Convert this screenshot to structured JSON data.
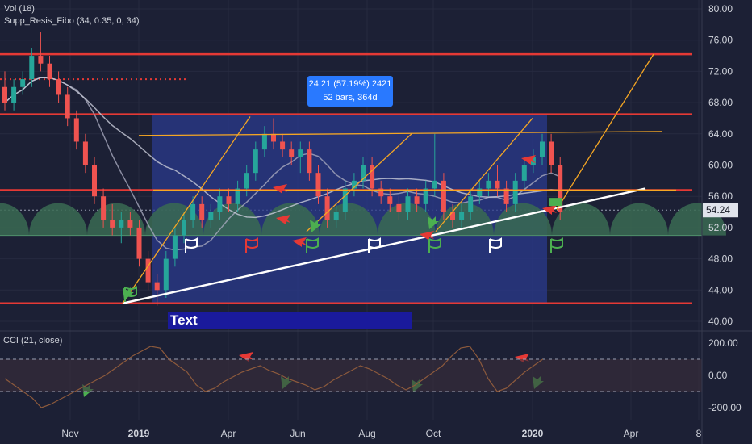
{
  "chart_data": [
    {
      "type": "candlestick",
      "title": "",
      "indicators_legend": [
        "Vol (18)",
        "Supp_Resis_Fibo (34, 0.35, 0, 34)"
      ],
      "x_ticks": [
        "Nov",
        "2019",
        "Apr",
        "Jun",
        "Aug",
        "Oct",
        "2020",
        "Apr",
        "8"
      ],
      "y_ticks": [
        "80.00",
        "76.00",
        "72.00",
        "68.00",
        "64.00",
        "60.00",
        "56.00",
        "52.00",
        "48.00",
        "44.00",
        "40.00"
      ],
      "ylim": [
        40,
        80
      ],
      "last_price": "54.24",
      "horizontal_levels": [
        74.2,
        66.5,
        56.8,
        42.3
      ],
      "measure_label_line1": "24.21 (57.19%) 2421",
      "measure_label_line2": "52 bars, 364d",
      "text_note": "Text",
      "colors": {
        "up": "#26a69a",
        "down": "#ef5350",
        "level": "#e53935",
        "trend": "#ffffff",
        "fib": "#f5a623",
        "zone": "#2a3a8c"
      },
      "candles": [
        {
          "o": 70,
          "h": 72,
          "l": 67,
          "c": 68
        },
        {
          "o": 68,
          "h": 71,
          "l": 67,
          "c": 70
        },
        {
          "o": 70,
          "h": 72,
          "l": 69,
          "c": 71
        },
        {
          "o": 71,
          "h": 75,
          "l": 70,
          "c": 74
        },
        {
          "o": 74,
          "h": 77,
          "l": 72,
          "c": 73
        },
        {
          "o": 73,
          "h": 74,
          "l": 70,
          "c": 71
        },
        {
          "o": 71,
          "h": 72,
          "l": 68,
          "c": 69
        },
        {
          "o": 69,
          "h": 70,
          "l": 65,
          "c": 66
        },
        {
          "o": 66,
          "h": 67,
          "l": 62,
          "c": 63
        },
        {
          "o": 63,
          "h": 64,
          "l": 59,
          "c": 60
        },
        {
          "o": 60,
          "h": 61,
          "l": 55,
          "c": 56
        },
        {
          "o": 56,
          "h": 57,
          "l": 52,
          "c": 53
        },
        {
          "o": 53,
          "h": 55,
          "l": 51,
          "c": 52
        },
        {
          "o": 52,
          "h": 54,
          "l": 50,
          "c": 53
        },
        {
          "o": 53,
          "h": 54,
          "l": 51,
          "c": 52
        },
        {
          "o": 52,
          "h": 53,
          "l": 47,
          "c": 48
        },
        {
          "o": 48,
          "h": 49,
          "l": 44,
          "c": 45
        },
        {
          "o": 45,
          "h": 46,
          "l": 42,
          "c": 44
        },
        {
          "o": 44,
          "h": 49,
          "l": 43,
          "c": 48
        },
        {
          "o": 48,
          "h": 52,
          "l": 47,
          "c": 51
        },
        {
          "o": 51,
          "h": 54,
          "l": 50,
          "c": 53
        },
        {
          "o": 53,
          "h": 56,
          "l": 52,
          "c": 55
        },
        {
          "o": 55,
          "h": 56,
          "l": 52,
          "c": 53
        },
        {
          "o": 53,
          "h": 55,
          "l": 52,
          "c": 54
        },
        {
          "o": 54,
          "h": 57,
          "l": 53,
          "c": 56
        },
        {
          "o": 56,
          "h": 57,
          "l": 54,
          "c": 55
        },
        {
          "o": 55,
          "h": 58,
          "l": 54,
          "c": 57
        },
        {
          "o": 57,
          "h": 60,
          "l": 56,
          "c": 59
        },
        {
          "o": 59,
          "h": 63,
          "l": 58,
          "c": 62
        },
        {
          "o": 62,
          "h": 65,
          "l": 61,
          "c": 64
        },
        {
          "o": 64,
          "h": 66,
          "l": 62,
          "c": 63
        },
        {
          "o": 63,
          "h": 64,
          "l": 61,
          "c": 62
        },
        {
          "o": 62,
          "h": 63,
          "l": 60,
          "c": 61
        },
        {
          "o": 61,
          "h": 63,
          "l": 59,
          "c": 62
        },
        {
          "o": 62,
          "h": 63,
          "l": 58,
          "c": 59
        },
        {
          "o": 59,
          "h": 60,
          "l": 55,
          "c": 56
        },
        {
          "o": 56,
          "h": 57,
          "l": 52,
          "c": 53
        },
        {
          "o": 53,
          "h": 55,
          "l": 52,
          "c": 54
        },
        {
          "o": 54,
          "h": 58,
          "l": 53,
          "c": 57
        },
        {
          "o": 57,
          "h": 59,
          "l": 56,
          "c": 58
        },
        {
          "o": 58,
          "h": 61,
          "l": 57,
          "c": 60
        },
        {
          "o": 60,
          "h": 61,
          "l": 56,
          "c": 57
        },
        {
          "o": 57,
          "h": 58,
          "l": 55,
          "c": 56
        },
        {
          "o": 56,
          "h": 57,
          "l": 54,
          "c": 55
        },
        {
          "o": 55,
          "h": 56,
          "l": 53,
          "c": 54
        },
        {
          "o": 54,
          "h": 57,
          "l": 53,
          "c": 56
        },
        {
          "o": 56,
          "h": 57,
          "l": 54,
          "c": 55
        },
        {
          "o": 55,
          "h": 58,
          "l": 54,
          "c": 57
        },
        {
          "o": 57,
          "h": 64,
          "l": 56,
          "c": 58
        },
        {
          "o": 58,
          "h": 59,
          "l": 53,
          "c": 54
        },
        {
          "o": 54,
          "h": 55,
          "l": 52,
          "c": 53
        },
        {
          "o": 53,
          "h": 55,
          "l": 52,
          "c": 54
        },
        {
          "o": 54,
          "h": 57,
          "l": 53,
          "c": 56
        },
        {
          "o": 56,
          "h": 58,
          "l": 55,
          "c": 57
        },
        {
          "o": 57,
          "h": 59,
          "l": 56,
          "c": 58
        },
        {
          "o": 58,
          "h": 60,
          "l": 56,
          "c": 57
        },
        {
          "o": 57,
          "h": 58,
          "l": 54,
          "c": 55
        },
        {
          "o": 55,
          "h": 59,
          "l": 54,
          "c": 58
        },
        {
          "o": 58,
          "h": 61,
          "l": 57,
          "c": 60
        },
        {
          "o": 60,
          "h": 62,
          "l": 59,
          "c": 61
        },
        {
          "o": 61,
          "h": 64,
          "l": 60,
          "c": 63
        },
        {
          "o": 63,
          "h": 64,
          "l": 59,
          "c": 60
        },
        {
          "o": 60,
          "h": 61,
          "l": 53,
          "c": 54
        }
      ]
    },
    {
      "type": "line",
      "title": "CCI (21, close)",
      "y_ticks": [
        "200.00",
        "0.00",
        "-200.00"
      ],
      "ylim": [
        -300,
        250
      ],
      "bands": [
        100,
        -100
      ],
      "values": [
        -20,
        -60,
        -100,
        -140,
        -200,
        -180,
        -150,
        -120,
        -90,
        -60,
        -30,
        0,
        40,
        80,
        120,
        150,
        180,
        170,
        100,
        60,
        20,
        -60,
        -100,
        -80,
        -40,
        -10,
        20,
        40,
        60,
        30,
        10,
        -20,
        -40,
        -60,
        -90,
        -70,
        -30,
        0,
        30,
        60,
        40,
        10,
        -20,
        -60,
        -90,
        -60,
        -20,
        20,
        60,
        120,
        170,
        180,
        100,
        -20,
        -100,
        -80,
        -30,
        20,
        60,
        100
      ]
    }
  ]
}
